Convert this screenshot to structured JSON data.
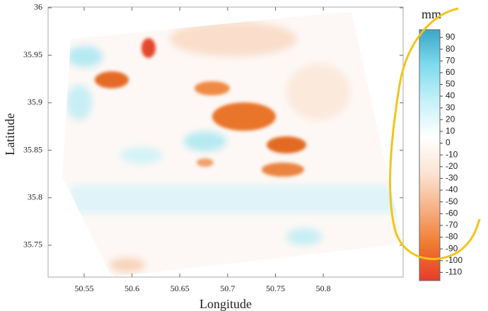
{
  "chart_data": {
    "type": "raster-map",
    "x_label": "Longitude",
    "y_label": "Latitude",
    "xlim": [
      50.5123,
      50.8835
    ],
    "ylim": [
      35.7165,
      36.0007
    ],
    "xticks": [
      50.55,
      50.6,
      50.65,
      50.7,
      50.75,
      50.8
    ],
    "yticks": [
      35.75,
      35.8,
      35.85,
      35.9,
      35.95,
      36
    ],
    "colorbar": {
      "label": "mm",
      "lim": [
        -117,
        96.6
      ],
      "ticks": [
        -110,
        -100,
        -90,
        -80,
        -70,
        -60,
        -50,
        -40,
        -30,
        -20,
        -10,
        0,
        10,
        20,
        30,
        40,
        50,
        60,
        70,
        80,
        90
      ],
      "colors": [
        "#e63b2b",
        "#f07a2e",
        "#f6b084",
        "#fbe4d4",
        "#ffffff",
        "#c6f1f8",
        "#7fdcee",
        "#3aa6c8"
      ]
    }
  }
}
